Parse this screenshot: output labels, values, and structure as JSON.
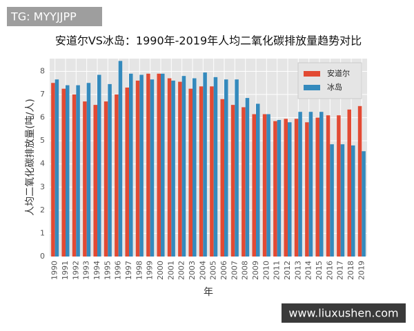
{
  "watermark_top": "TG: MYYJJPP",
  "watermark_bottom": "www.liuxushen.com",
  "chart_data": {
    "type": "bar",
    "title": "安道尔VS冰岛：1990年-2019年人均二氧化碳排放量趋势对比",
    "x_label": "年",
    "y_label": "人均二氧化碳排放量(吨/人)",
    "categories": [
      "1990",
      "1991",
      "1992",
      "1993",
      "1994",
      "1995",
      "1996",
      "1997",
      "1998",
      "1999",
      "2000",
      "2001",
      "2002",
      "2003",
      "2004",
      "2005",
      "2006",
      "2007",
      "2008",
      "2009",
      "2010",
      "2011",
      "2012",
      "2013",
      "2014",
      "2015",
      "2016",
      "2017",
      "2018",
      "2019"
    ],
    "series": [
      {
        "name": "安道尔",
        "color": "#E24A33",
        "values": [
          7.5,
          7.25,
          7.0,
          6.7,
          6.55,
          6.7,
          7.0,
          7.3,
          7.6,
          7.9,
          7.9,
          7.7,
          7.55,
          7.25,
          7.35,
          7.35,
          6.8,
          6.55,
          6.45,
          6.15,
          6.15,
          5.85,
          5.95,
          5.95,
          5.8,
          6.0,
          6.1,
          6.1,
          6.35,
          6.5
        ]
      },
      {
        "name": "冰岛",
        "color": "#348ABD",
        "values": [
          7.65,
          7.4,
          7.4,
          7.5,
          7.85,
          7.45,
          8.45,
          7.9,
          7.85,
          7.65,
          7.9,
          7.6,
          7.8,
          7.7,
          7.95,
          7.75,
          7.65,
          7.65,
          6.85,
          6.6,
          6.15,
          5.9,
          5.8,
          6.25,
          6.25,
          6.25,
          4.85,
          4.85,
          4.8,
          4.55
        ]
      }
    ],
    "ylim": [
      0,
      8.55
    ],
    "yticks": [
      0,
      1,
      2,
      3,
      4,
      5,
      6,
      7,
      8
    ],
    "grid": true,
    "legend": "upper right"
  }
}
